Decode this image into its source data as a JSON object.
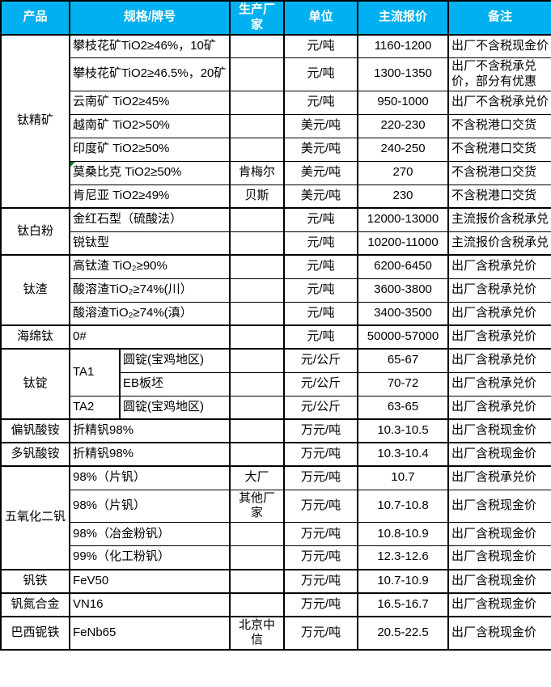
{
  "colors": {
    "header_bg": "#00B0F0",
    "header_text": "#FFFFFF",
    "border": "#000000",
    "flag_green": "#008000"
  },
  "header": {
    "product": "产品",
    "spec": "规格/牌号",
    "maker": "生产厂家",
    "unit": "单位",
    "price": "主流报价",
    "note": "备注"
  },
  "groups": [
    {
      "product": "钛精矿",
      "rows": [
        {
          "spec": "攀枝花矿TiO2≥46%，10矿",
          "maker": "",
          "unit": "元/吨",
          "price": "1160-1200",
          "note": "出厂不含税现金价"
        },
        {
          "spec": "攀枝花矿TiO2≥46.5%，20矿",
          "maker": "",
          "unit": "元/吨",
          "price": "1300-1350",
          "note": "出厂不含税承兑价，部分有优惠"
        },
        {
          "spec": "云南矿 TiO2≥45%",
          "maker": "",
          "unit": "元/吨",
          "price": "950-1000",
          "note": "出厂不含税承兑价"
        },
        {
          "spec": "越南矿 TiO2>50%",
          "maker": "",
          "unit": "美元/吨",
          "price": "220-230",
          "note": "不含税港口交货"
        },
        {
          "spec": "印度矿 TiO2≥50%",
          "maker": "",
          "unit": "美元/吨",
          "price": "240-250",
          "note": "不含税港口交货"
        },
        {
          "spec": "莫桑比克 TiO2≥50%",
          "maker": "肯梅尔",
          "unit": "美元/吨",
          "price": "270",
          "note": "不含税港口交货",
          "flag": true
        },
        {
          "spec": "肯尼亚 TiO2≥49%",
          "maker": "贝斯",
          "unit": "美元/吨",
          "price": "230",
          "note": "不含税港口交货"
        }
      ]
    },
    {
      "product": "钛白粉",
      "rows": [
        {
          "spec": "金红石型（硫酸法）",
          "maker": "",
          "unit": "元/吨",
          "price": "12000-13000",
          "note": "主流报价含税承兑"
        },
        {
          "spec": "锐钛型",
          "maker": "",
          "unit": "元/吨",
          "price": "10200-11000",
          "note": "主流报价含税承兑"
        }
      ]
    },
    {
      "product": "钛渣",
      "rows": [
        {
          "spec": "高钛渣 TiO₂≥90%",
          "maker": "",
          "unit": "元/吨",
          "price": "6200-6450",
          "note": "出厂含税承兑价"
        },
        {
          "spec": "酸溶渣TiO₂≥74%(川）",
          "maker": "",
          "unit": "元/吨",
          "price": "3600-3800",
          "note": "出厂含税承兑价"
        },
        {
          "spec": "酸溶渣TiO₂≥74%(滇）",
          "maker": "",
          "unit": "元/吨",
          "price": "3400-3500",
          "note": "出厂含税承兑价"
        }
      ]
    },
    {
      "product": "海绵钛",
      "rows": [
        {
          "spec": "0#",
          "maker": "",
          "unit": "元/吨",
          "price": "50000-57000",
          "note": "出厂含税承兑价"
        }
      ]
    },
    {
      "product": "钛锭",
      "split_spec": true,
      "rows": [
        {
          "grade": "TA1",
          "grade_rowspan": 2,
          "spec": "圆锭(宝鸡地区)",
          "maker": "",
          "unit": "元/公斤",
          "price": "65-67",
          "note": "出厂含税承兑价"
        },
        {
          "spec": "EB板坯",
          "maker": "",
          "unit": "元/公斤",
          "price": "70-72",
          "note": "出厂含税承兑价"
        },
        {
          "grade": "TA2",
          "grade_rowspan": 1,
          "spec": "圆锭(宝鸡地区)",
          "maker": "",
          "unit": "元/公斤",
          "price": "63-65",
          "note": "出厂含税承兑价"
        }
      ]
    },
    {
      "product": "偏钒酸铵",
      "rows": [
        {
          "spec": "折精钒98%",
          "maker": "",
          "unit": "万元/吨",
          "price": "10.3-10.5",
          "note": "出厂含税现金价"
        }
      ]
    },
    {
      "product": "多钒酸铵",
      "rows": [
        {
          "spec": "折精钒98%",
          "maker": "",
          "unit": "万元/吨",
          "price": "10.3-10.4",
          "note": "出厂含税现金价"
        }
      ]
    },
    {
      "product": "五氧化二钒",
      "rows": [
        {
          "spec": "98%（片钒）",
          "maker": "大厂",
          "unit": "万元/吨",
          "price": "10.7",
          "note": "出厂含税承兑价"
        },
        {
          "spec": "98%（片钒）",
          "maker": "其他厂家",
          "unit": "万元/吨",
          "price": "10.7-10.8",
          "note": "出厂含税现金价"
        },
        {
          "spec": "98%（冶金粉钒）",
          "maker": "",
          "unit": "万元/吨",
          "price": "10.8-10.9",
          "note": "出厂含税现金价"
        },
        {
          "spec": "99%（化工粉钒）",
          "maker": "",
          "unit": "万元/吨",
          "price": "12.3-12.6",
          "note": "出厂含税现金价"
        }
      ]
    },
    {
      "product": "钒铁",
      "rows": [
        {
          "spec": "FeV50",
          "maker": "",
          "unit": "万元/吨",
          "price": "10.7-10.9",
          "note": "出厂含税现金价"
        }
      ]
    },
    {
      "product": "钒氮合金",
      "rows": [
        {
          "spec": "VN16",
          "maker": "",
          "unit": "万元/吨",
          "price": "16.5-16.7",
          "note": "出厂含税现金价"
        }
      ]
    },
    {
      "product": "巴西铌铁",
      "rows": [
        {
          "spec": "FeNb65",
          "maker": "北京中信",
          "unit": "万元/吨",
          "price": "20.5-22.5",
          "note": "出厂含税现金价"
        }
      ]
    }
  ]
}
